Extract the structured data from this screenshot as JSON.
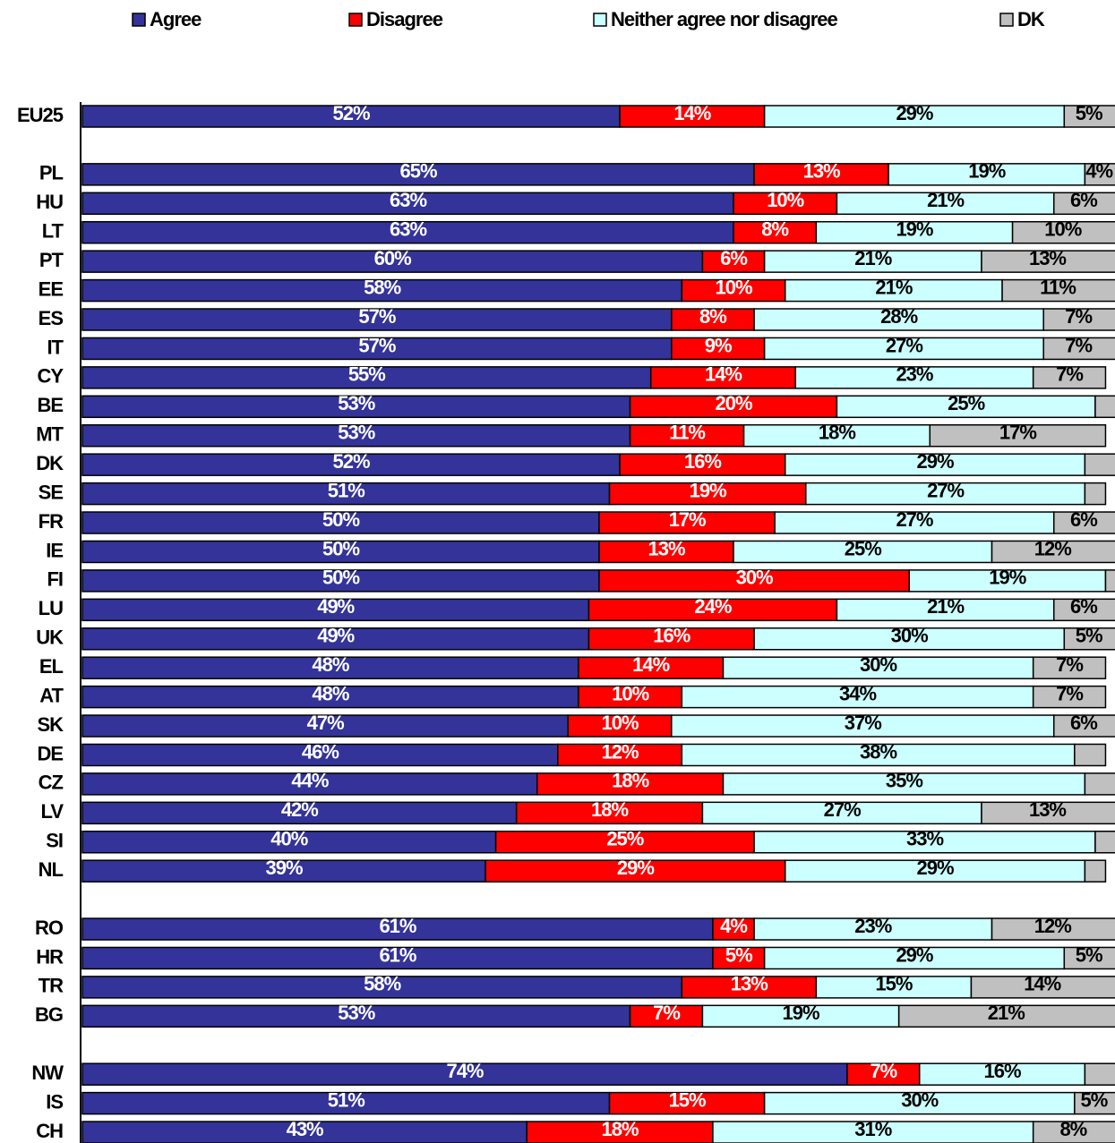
{
  "chart_data": {
    "type": "stacked_bar_horizontal",
    "categories": [
      "EU25",
      null,
      "PL",
      "HU",
      "LT",
      "PT",
      "EE",
      "ES",
      "IT",
      "CY",
      "BE",
      "MT",
      "DK",
      "SE",
      "FR",
      "IE",
      "FI",
      "LU",
      "UK",
      "EL",
      "AT",
      "SK",
      "DE",
      "CZ",
      "LV",
      "SI",
      "NL",
      null,
      "RO",
      "HR",
      "TR",
      "BG",
      null,
      "NW",
      "IS",
      "CH"
    ],
    "xlim": [
      0,
      100
    ],
    "legend": "top",
    "series": [
      {
        "name": "Agree",
        "color": "#333399",
        "values": [
          52,
          null,
          65,
          63,
          63,
          60,
          58,
          57,
          57,
          55,
          53,
          53,
          52,
          51,
          50,
          50,
          50,
          49,
          49,
          48,
          48,
          47,
          46,
          44,
          42,
          40,
          39,
          null,
          61,
          61,
          58,
          53,
          null,
          74,
          51,
          43
        ],
        "value_labels": [
          "52%",
          null,
          "65%",
          "63%",
          "63%",
          "60%",
          "58%",
          "57%",
          "57%",
          "55%",
          "53%",
          "53%",
          "52%",
          "51%",
          "50%",
          "50%",
          "50%",
          "49%",
          "49%",
          "48%",
          "48%",
          "47%",
          "46%",
          "44%",
          "42%",
          "40%",
          "39%",
          null,
          "61%",
          "61%",
          "58%",
          "53%",
          null,
          "74%",
          "51%",
          "43%"
        ]
      },
      {
        "name": "Disagree",
        "color": "#ff0000",
        "values": [
          14,
          null,
          13,
          10,
          8,
          6,
          10,
          8,
          9,
          14,
          20,
          11,
          16,
          19,
          17,
          13,
          30,
          24,
          16,
          14,
          10,
          10,
          12,
          18,
          18,
          25,
          29,
          null,
          4,
          5,
          13,
          7,
          null,
          7,
          15,
          18
        ],
        "value_labels": [
          "14%",
          null,
          "13%",
          "10%",
          "8%",
          "6%",
          "10%",
          "8%",
          "9%",
          "14%",
          "20%",
          "11%",
          "16%",
          "19%",
          "17%",
          "13%",
          "30%",
          "24%",
          "16%",
          "14%",
          "10%",
          "10%",
          "12%",
          "18%",
          "18%",
          "25%",
          "29%",
          null,
          "4%",
          "5%",
          "13%",
          "7%",
          null,
          "7%",
          "15%",
          "18%"
        ]
      },
      {
        "name": "Neither agree nor disagree",
        "color": "#ccffff",
        "values": [
          29,
          null,
          19,
          21,
          19,
          21,
          21,
          28,
          27,
          23,
          25,
          18,
          29,
          27,
          27,
          25,
          19,
          21,
          30,
          30,
          34,
          37,
          38,
          35,
          27,
          33,
          29,
          null,
          23,
          29,
          15,
          19,
          null,
          16,
          30,
          31
        ],
        "value_labels": [
          "29%",
          null,
          "19%",
          "21%",
          "19%",
          "21%",
          "21%",
          "28%",
          "27%",
          "23%",
          "25%",
          "18%",
          "29%",
          "27%",
          "27%",
          "25%",
          "19%",
          "21%",
          "30%",
          "30%",
          "34%",
          "37%",
          "38%",
          "35%",
          "27%",
          "33%",
          "29%",
          null,
          "23%",
          "29%",
          "15%",
          "19%",
          null,
          "16%",
          "30%",
          "31%"
        ]
      },
      {
        "name": "DK",
        "color": "#c0c0c0",
        "values": [
          5,
          null,
          4,
          6,
          10,
          13,
          11,
          7,
          7,
          7,
          2,
          17,
          3,
          2,
          6,
          12,
          1,
          6,
          5,
          7,
          7,
          6,
          3,
          3,
          13,
          2,
          2,
          null,
          12,
          5,
          14,
          21,
          null,
          3,
          5,
          8
        ],
        "value_labels": [
          "5%",
          null,
          "4%",
          "6%",
          "10%",
          "13%",
          "11%",
          "7%",
          "7%",
          "7%",
          null,
          "17%",
          null,
          null,
          "6%",
          "12%",
          null,
          "6%",
          "5%",
          "7%",
          "7%",
          "6%",
          null,
          null,
          "13%",
          null,
          null,
          null,
          "12%",
          "5%",
          "14%",
          "21%",
          null,
          null,
          "5%",
          "8%"
        ]
      }
    ]
  }
}
